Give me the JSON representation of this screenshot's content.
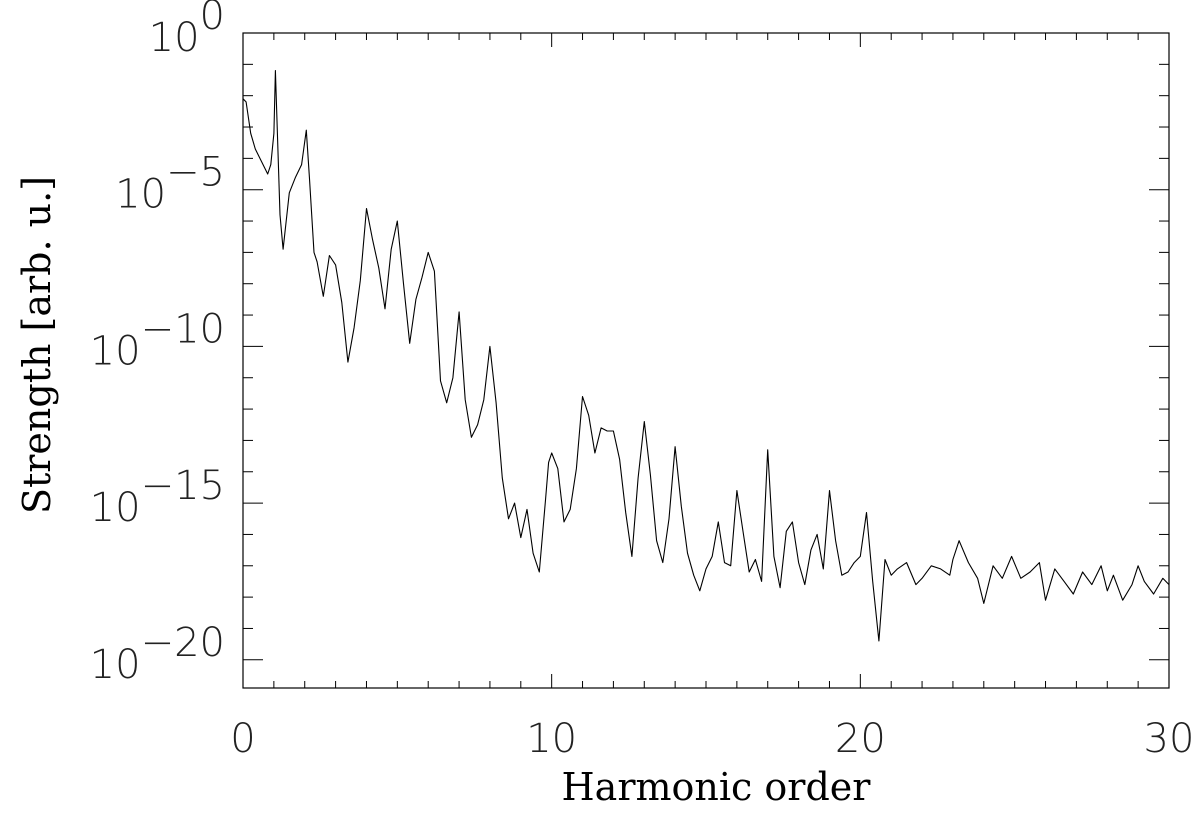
{
  "chart_data": {
    "type": "line",
    "title": "",
    "xlabel": "Harmonic order",
    "ylabel": "Strength [arb. u.]",
    "xlim": [
      0,
      30
    ],
    "ylim_log10": [
      -20.9,
      0
    ],
    "yscale": "log",
    "grid": false,
    "x_ticks": [
      {
        "value": 0,
        "label": "0"
      },
      {
        "value": 10,
        "label": "10"
      },
      {
        "value": 20,
        "label": "20"
      },
      {
        "value": 30,
        "label": "30"
      }
    ],
    "y_ticks": [
      {
        "exp": 0,
        "base": "10",
        "sup": "0"
      },
      {
        "exp": -5,
        "base": "10",
        "sup": "−5"
      },
      {
        "exp": -10,
        "base": "10",
        "sup": "−10"
      },
      {
        "exp": -15,
        "base": "10",
        "sup": "−15"
      },
      {
        "exp": -20,
        "base": "10",
        "sup": "−20"
      }
    ],
    "series": [
      {
        "color": "#000000",
        "x": [
          0.0,
          0.1,
          0.25,
          0.4,
          0.6,
          0.7,
          0.8,
          0.9,
          1.0,
          1.05,
          1.1,
          1.2,
          1.3,
          1.5,
          1.7,
          1.9,
          2.05,
          2.15,
          2.3,
          2.4,
          2.6,
          2.8,
          3.0,
          3.2,
          3.4,
          3.6,
          3.8,
          4.0,
          4.2,
          4.4,
          4.6,
          4.8,
          5.0,
          5.2,
          5.4,
          5.6,
          5.8,
          6.0,
          6.2,
          6.4,
          6.6,
          6.8,
          7.0,
          7.2,
          7.4,
          7.6,
          7.8,
          8.0,
          8.2,
          8.4,
          8.6,
          8.8,
          9.0,
          9.2,
          9.4,
          9.6,
          9.8,
          9.9,
          10.0,
          10.2,
          10.4,
          10.6,
          10.8,
          11.0,
          11.2,
          11.4,
          11.6,
          11.8,
          12.0,
          12.2,
          12.4,
          12.6,
          12.8,
          13.0,
          13.2,
          13.4,
          13.6,
          13.8,
          14.0,
          14.2,
          14.4,
          14.6,
          14.8,
          15.0,
          15.2,
          15.4,
          15.6,
          15.8,
          16.0,
          16.2,
          16.4,
          16.6,
          16.8,
          17.0,
          17.2,
          17.4,
          17.6,
          17.8,
          18.0,
          18.2,
          18.4,
          18.6,
          18.8,
          19.0,
          19.2,
          19.4,
          19.6,
          19.8,
          20.0,
          20.2,
          20.4,
          20.6,
          20.8,
          21.0,
          21.2,
          21.5,
          21.8,
          22.0,
          22.3,
          22.6,
          22.9,
          23.0,
          23.2,
          23.5,
          23.8,
          24.0,
          24.3,
          24.6,
          24.9,
          25.2,
          25.5,
          25.8,
          26.0,
          26.3,
          26.6,
          26.9,
          27.2,
          27.5,
          27.8,
          28.0,
          28.2,
          28.5,
          28.8,
          29.0,
          29.2,
          29.5,
          29.8,
          30.0
        ],
        "y": [
          -2.1,
          -2.2,
          -3.2,
          -3.7,
          -4.1,
          -4.3,
          -4.5,
          -4.2,
          -3.2,
          -1.2,
          -2.8,
          -5.8,
          -6.9,
          -5.1,
          -4.6,
          -4.2,
          -3.1,
          -4.6,
          -7.0,
          -7.3,
          -8.4,
          -7.1,
          -7.4,
          -8.6,
          -10.5,
          -9.4,
          -7.9,
          -5.6,
          -6.6,
          -7.5,
          -8.8,
          -6.9,
          -6.0,
          -8.0,
          -9.9,
          -8.5,
          -7.8,
          -7.0,
          -7.6,
          -11.1,
          -11.8,
          -11.0,
          -8.9,
          -11.7,
          -12.9,
          -12.5,
          -11.7,
          -10.0,
          -11.8,
          -14.2,
          -15.5,
          -15.0,
          -16.1,
          -15.2,
          -16.6,
          -17.2,
          -14.9,
          -13.7,
          -13.4,
          -13.9,
          -15.6,
          -15.2,
          -13.9,
          -11.6,
          -12.2,
          -13.4,
          -12.6,
          -12.7,
          -12.7,
          -13.6,
          -15.3,
          -16.7,
          -14.2,
          -12.4,
          -14.1,
          -16.2,
          -16.9,
          -15.5,
          -13.2,
          -15.1,
          -16.6,
          -17.3,
          -17.8,
          -17.1,
          -16.7,
          -15.6,
          -16.9,
          -17.0,
          -14.6,
          -15.9,
          -17.2,
          -16.8,
          -17.5,
          -13.3,
          -16.7,
          -17.7,
          -15.9,
          -15.6,
          -16.9,
          -17.6,
          -16.5,
          -16.0,
          -17.1,
          -14.6,
          -16.2,
          -17.3,
          -17.2,
          -16.9,
          -16.7,
          -15.3,
          -17.5,
          -19.4,
          -16.8,
          -17.3,
          -17.1,
          -16.9,
          -17.6,
          -17.4,
          -17.0,
          -17.1,
          -17.3,
          -16.8,
          -16.2,
          -16.9,
          -17.4,
          -18.2,
          -17.0,
          -17.4,
          -16.7,
          -17.4,
          -17.2,
          -16.9,
          -18.1,
          -17.1,
          -17.5,
          -17.9,
          -17.2,
          -17.6,
          -17.0,
          -17.8,
          -17.3,
          -18.1,
          -17.6,
          -17.0,
          -17.5,
          -17.9,
          -17.4,
          -17.6
        ]
      }
    ]
  }
}
